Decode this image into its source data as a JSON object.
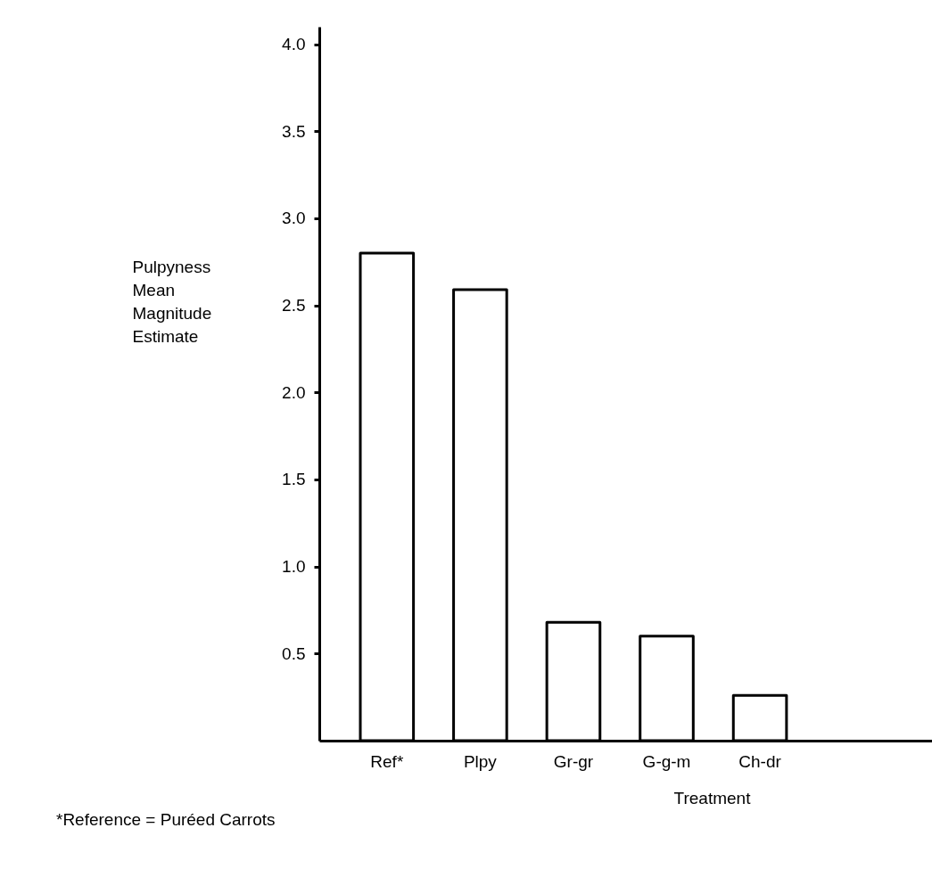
{
  "chart_data": {
    "type": "bar",
    "categories": [
      "Ref*",
      "Plpy",
      "Gr-gr",
      "G-g-m",
      "Ch-dr"
    ],
    "values": [
      2.8,
      2.59,
      0.68,
      0.6,
      0.26
    ],
    "color": "#ffffff",
    "xlabel": "Treatment",
    "ylabel": "Pulpyness Mean Magnitude Estimate",
    "annotations": [
      "*Reference = Puréed Carrots"
    ],
    "ylim": [
      0,
      4.1
    ],
    "yticks": [
      0.5,
      {
        "value": 1,
        "label": "1.0"
      },
      1.5,
      {
        "value": 2,
        "label": "2.0"
      },
      2.5,
      {
        "value": 3,
        "label": "3.0"
      },
      3.5,
      {
        "value": 4,
        "label": "4.0"
      }
    ],
    "grid": false
  }
}
